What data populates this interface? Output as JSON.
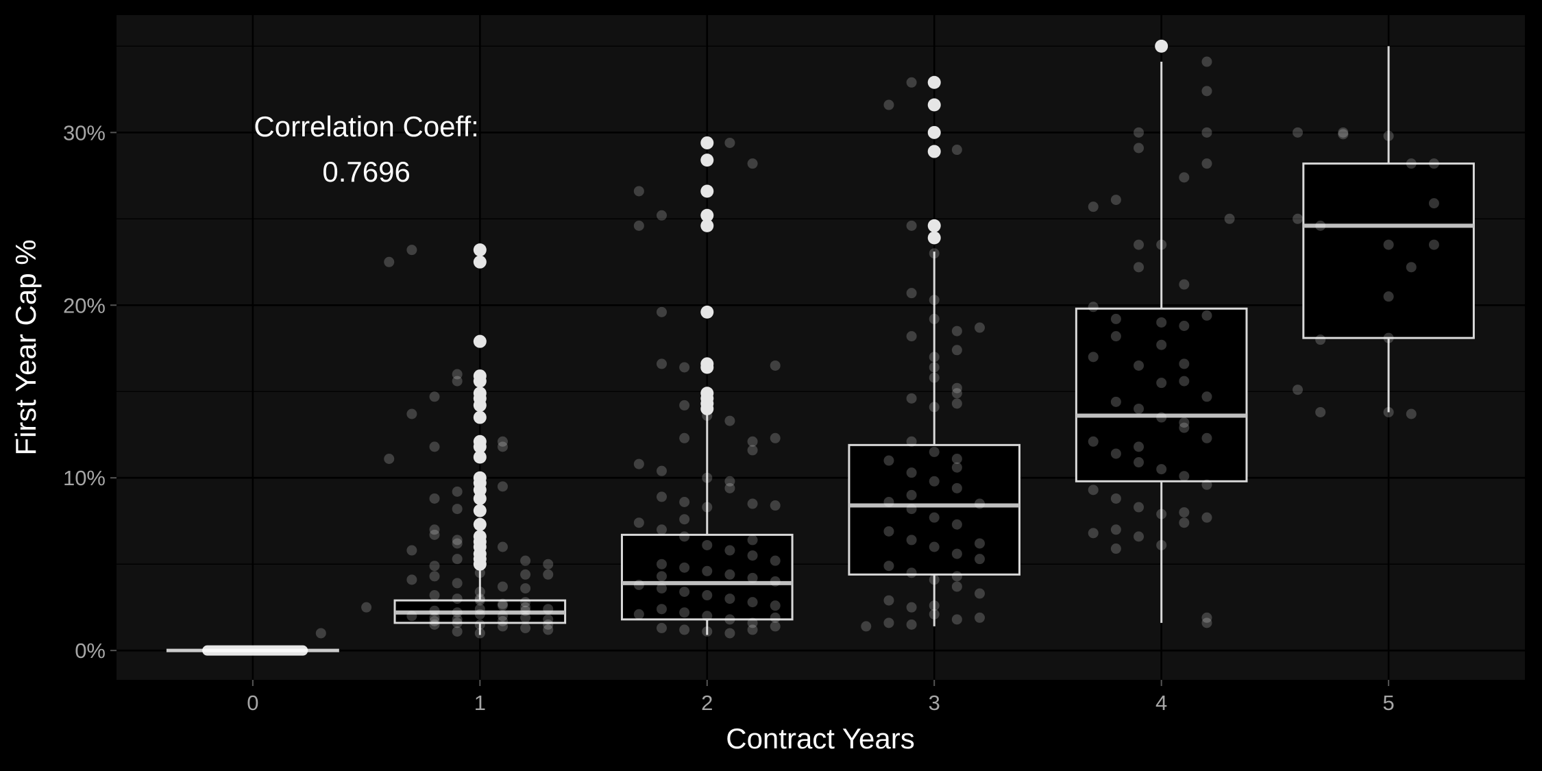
{
  "chart_data": {
    "type": "boxplot",
    "xlabel": "Contract Years",
    "ylabel": "First Year Cap %",
    "x_ticks": [
      "0",
      "1",
      "2",
      "3",
      "4",
      "5"
    ],
    "y_ticks": [
      "0%",
      "10%",
      "20%",
      "30%"
    ],
    "y_tick_values": [
      0,
      10,
      20,
      30
    ],
    "ylim": [
      -1.7,
      36.8
    ],
    "xlim": [
      -0.6,
      5.6
    ],
    "grid": true,
    "annotation": {
      "line1": "Correlation Coeff:",
      "line2": "0.7696",
      "x": 0.5,
      "y": 29.5
    },
    "colors": {
      "background": "#000000",
      "panel": "#111111",
      "box_fill": "#000000",
      "box_stroke": "#d9d9d9",
      "median": "#bfbfbf",
      "points": "#ffffff"
    },
    "boxes": [
      {
        "x": 0,
        "q1": 0.0,
        "median": 0.0,
        "q3": 0.0,
        "whisker_low": 0.0,
        "whisker_high": 0.0,
        "outliers": []
      },
      {
        "x": 1,
        "q1": 1.6,
        "median": 2.2,
        "q3": 2.9,
        "whisker_low": 0.9,
        "whisker_high": 4.9,
        "outliers": [
          5.0,
          5.3,
          5.6,
          6.0,
          6.3,
          6.6,
          7.3,
          8.1,
          8.8,
          9.3,
          9.7,
          10.0,
          11.2,
          11.8,
          12.1,
          13.5,
          14.2,
          14.6,
          14.9,
          15.6,
          15.9,
          17.9,
          22.5,
          23.2
        ]
      },
      {
        "x": 2,
        "q1": 1.8,
        "median": 3.9,
        "q3": 6.7,
        "whisker_low": 0.9,
        "whisker_high": 13.7,
        "outliers": [
          14.0,
          14.3,
          14.6,
          14.9,
          16.4,
          16.6,
          19.6,
          24.6,
          25.2,
          26.6,
          28.4,
          29.4
        ]
      },
      {
        "x": 3,
        "q1": 4.4,
        "median": 8.4,
        "q3": 11.9,
        "whisker_low": 1.4,
        "whisker_high": 23.1,
        "outliers": [
          23.9,
          24.6,
          28.9,
          30.0,
          31.6,
          32.9
        ]
      },
      {
        "x": 4,
        "q1": 9.8,
        "median": 13.6,
        "q3": 19.8,
        "whisker_low": 1.6,
        "whisker_high": 34.1,
        "outliers": [
          35.0
        ]
      },
      {
        "x": 5,
        "q1": 18.1,
        "median": 24.6,
        "q3": 28.2,
        "whisker_low": 13.8,
        "whisker_high": 35.0,
        "outliers": []
      }
    ],
    "jitter_points": [
      [
        0.3,
        1.0
      ],
      [
        0.5,
        2.5
      ],
      [
        0.8,
        1.5
      ],
      [
        1.0,
        3.0
      ],
      [
        0.6,
        22.5
      ],
      [
        0.7,
        23.2
      ],
      [
        1.0,
        17.9
      ],
      [
        0.8,
        14.7
      ],
      [
        0.9,
        15.6
      ],
      [
        0.9,
        16.0
      ],
      [
        0.7,
        13.7
      ],
      [
        0.6,
        11.1
      ],
      [
        0.8,
        11.8
      ],
      [
        1.1,
        12.1
      ],
      [
        1.1,
        11.8
      ],
      [
        1.1,
        9.5
      ],
      [
        0.8,
        8.8
      ],
      [
        0.9,
        9.2
      ],
      [
        1.0,
        9.0
      ],
      [
        0.9,
        8.2
      ],
      [
        1.0,
        7.4
      ],
      [
        0.8,
        7.0
      ],
      [
        0.9,
        6.4
      ],
      [
        0.8,
        6.7
      ],
      [
        0.9,
        6.2
      ],
      [
        0.7,
        5.8
      ],
      [
        1.0,
        5.5
      ],
      [
        1.1,
        6.0
      ],
      [
        1.2,
        5.2
      ],
      [
        1.3,
        5.0
      ],
      [
        0.9,
        5.3
      ],
      [
        0.8,
        4.9
      ],
      [
        1.0,
        4.5
      ],
      [
        1.2,
        4.4
      ],
      [
        1.3,
        4.4
      ],
      [
        0.8,
        4.3
      ],
      [
        0.7,
        4.1
      ],
      [
        0.9,
        3.9
      ],
      [
        1.1,
        3.7
      ],
      [
        1.2,
        3.6
      ],
      [
        1.0,
        3.4
      ],
      [
        0.8,
        3.2
      ],
      [
        0.9,
        3.0
      ],
      [
        1.0,
        2.9
      ],
      [
        1.1,
        2.7
      ],
      [
        1.2,
        2.5
      ],
      [
        1.3,
        2.4
      ],
      [
        0.8,
        2.3
      ],
      [
        0.9,
        2.2
      ],
      [
        1.0,
        2.1
      ],
      [
        1.1,
        2.0
      ],
      [
        1.2,
        1.9
      ],
      [
        1.3,
        1.8
      ],
      [
        0.8,
        1.7
      ],
      [
        0.9,
        1.6
      ],
      [
        1.0,
        1.5
      ],
      [
        1.1,
        1.4
      ],
      [
        1.2,
        1.3
      ],
      [
        1.3,
        1.2
      ],
      [
        0.9,
        1.1
      ],
      [
        1.0,
        1.0
      ],
      [
        1.1,
        2.6
      ],
      [
        1.2,
        2.3
      ],
      [
        0.7,
        2.0
      ],
      [
        1.3,
        1.5
      ],
      [
        0.8,
        1.9
      ],
      [
        1.0,
        2.4
      ],
      [
        1.1,
        1.7
      ],
      [
        1.2,
        2.8
      ],
      [
        0.9,
        1.8
      ],
      [
        1.7,
        26.6
      ],
      [
        1.8,
        25.2
      ],
      [
        1.7,
        24.6
      ],
      [
        2.1,
        29.4
      ],
      [
        2.2,
        28.2
      ],
      [
        1.8,
        19.6
      ],
      [
        1.8,
        16.6
      ],
      [
        1.9,
        16.4
      ],
      [
        2.3,
        16.5
      ],
      [
        1.9,
        14.2
      ],
      [
        2.1,
        13.3
      ],
      [
        2.0,
        13.6
      ],
      [
        1.9,
        12.3
      ],
      [
        2.2,
        12.1
      ],
      [
        2.3,
        12.3
      ],
      [
        2.2,
        11.6
      ],
      [
        1.7,
        10.8
      ],
      [
        1.8,
        10.4
      ],
      [
        2.0,
        10.0
      ],
      [
        2.1,
        9.4
      ],
      [
        1.8,
        8.9
      ],
      [
        1.9,
        8.6
      ],
      [
        2.0,
        8.3
      ],
      [
        2.2,
        8.5
      ],
      [
        2.3,
        8.4
      ],
      [
        1.7,
        7.4
      ],
      [
        1.8,
        7.0
      ],
      [
        1.9,
        6.6
      ],
      [
        2.0,
        6.1
      ],
      [
        2.1,
        5.8
      ],
      [
        2.2,
        5.5
      ],
      [
        2.3,
        5.2
      ],
      [
        1.8,
        5.0
      ],
      [
        1.9,
        4.8
      ],
      [
        2.0,
        4.6
      ],
      [
        2.1,
        4.4
      ],
      [
        2.2,
        4.2
      ],
      [
        2.3,
        4.0
      ],
      [
        1.7,
        3.8
      ],
      [
        1.8,
        3.6
      ],
      [
        1.9,
        3.4
      ],
      [
        2.0,
        3.2
      ],
      [
        2.1,
        3.0
      ],
      [
        2.2,
        2.8
      ],
      [
        2.3,
        2.6
      ],
      [
        1.8,
        2.4
      ],
      [
        1.9,
        2.2
      ],
      [
        2.0,
        2.0
      ],
      [
        2.1,
        1.8
      ],
      [
        2.2,
        1.6
      ],
      [
        2.3,
        1.4
      ],
      [
        1.8,
        1.3
      ],
      [
        1.9,
        1.2
      ],
      [
        2.0,
        1.1
      ],
      [
        2.1,
        1.0
      ],
      [
        2.2,
        1.2
      ],
      [
        1.7,
        2.1
      ],
      [
        2.3,
        1.9
      ],
      [
        1.8,
        4.3
      ],
      [
        2.2,
        6.4
      ],
      [
        1.9,
        7.6
      ],
      [
        2.1,
        9.8
      ],
      [
        2.8,
        31.6
      ],
      [
        2.9,
        32.9
      ],
      [
        3.1,
        29.0
      ],
      [
        2.9,
        24.6
      ],
      [
        3.0,
        23.9
      ],
      [
        3.0,
        23.0
      ],
      [
        2.9,
        20.7
      ],
      [
        3.0,
        20.3
      ],
      [
        3.0,
        19.2
      ],
      [
        3.1,
        18.5
      ],
      [
        3.2,
        18.7
      ],
      [
        2.9,
        18.2
      ],
      [
        3.0,
        17.0
      ],
      [
        3.1,
        17.4
      ],
      [
        3.0,
        16.4
      ],
      [
        3.0,
        15.8
      ],
      [
        3.1,
        15.2
      ],
      [
        3.1,
        14.9
      ],
      [
        2.9,
        14.6
      ],
      [
        3.0,
        14.1
      ],
      [
        3.1,
        14.3
      ],
      [
        2.9,
        12.1
      ],
      [
        3.0,
        11.5
      ],
      [
        3.1,
        11.1
      ],
      [
        2.8,
        11.0
      ],
      [
        2.9,
        10.3
      ],
      [
        3.0,
        9.8
      ],
      [
        3.1,
        9.4
      ],
      [
        2.8,
        8.6
      ],
      [
        2.9,
        8.2
      ],
      [
        3.0,
        7.7
      ],
      [
        3.1,
        7.3
      ],
      [
        3.2,
        8.5
      ],
      [
        2.8,
        6.9
      ],
      [
        2.9,
        6.4
      ],
      [
        3.0,
        6.0
      ],
      [
        3.1,
        5.6
      ],
      [
        3.2,
        5.3
      ],
      [
        2.8,
        4.9
      ],
      [
        2.9,
        4.5
      ],
      [
        3.0,
        4.1
      ],
      [
        3.1,
        3.7
      ],
      [
        3.2,
        3.3
      ],
      [
        2.8,
        2.9
      ],
      [
        2.9,
        2.5
      ],
      [
        3.0,
        2.1
      ],
      [
        3.1,
        1.8
      ],
      [
        3.2,
        1.9
      ],
      [
        2.7,
        1.4
      ],
      [
        2.8,
        1.6
      ],
      [
        2.9,
        1.5
      ],
      [
        3.0,
        2.6
      ],
      [
        3.1,
        4.3
      ],
      [
        3.2,
        6.2
      ],
      [
        2.9,
        9.0
      ],
      [
        3.1,
        10.6
      ],
      [
        3.7,
        25.7
      ],
      [
        3.8,
        26.1
      ],
      [
        3.9,
        30.0
      ],
      [
        3.9,
        29.1
      ],
      [
        4.1,
        27.4
      ],
      [
        4.2,
        32.4
      ],
      [
        4.2,
        34.1
      ],
      [
        4.2,
        30.0
      ],
      [
        4.2,
        28.2
      ],
      [
        4.3,
        25.0
      ],
      [
        3.9,
        23.5
      ],
      [
        4.0,
        23.5
      ],
      [
        3.9,
        22.2
      ],
      [
        4.1,
        21.2
      ],
      [
        3.7,
        19.9
      ],
      [
        3.8,
        19.2
      ],
      [
        4.0,
        19.0
      ],
      [
        4.1,
        18.8
      ],
      [
        4.2,
        19.4
      ],
      [
        3.8,
        18.2
      ],
      [
        4.0,
        17.7
      ],
      [
        4.1,
        16.6
      ],
      [
        3.7,
        17.0
      ],
      [
        3.9,
        16.5
      ],
      [
        4.0,
        15.5
      ],
      [
        4.1,
        15.6
      ],
      [
        4.2,
        14.7
      ],
      [
        3.8,
        14.4
      ],
      [
        3.9,
        14.0
      ],
      [
        4.0,
        13.5
      ],
      [
        4.1,
        12.9
      ],
      [
        4.2,
        12.3
      ],
      [
        3.7,
        12.1
      ],
      [
        3.8,
        11.4
      ],
      [
        3.9,
        10.9
      ],
      [
        4.0,
        10.5
      ],
      [
        4.1,
        10.1
      ],
      [
        4.2,
        9.6
      ],
      [
        3.7,
        9.3
      ],
      [
        3.8,
        8.8
      ],
      [
        3.9,
        8.3
      ],
      [
        4.0,
        7.9
      ],
      [
        4.1,
        7.4
      ],
      [
        4.2,
        7.7
      ],
      [
        3.8,
        7.0
      ],
      [
        3.9,
        6.6
      ],
      [
        4.0,
        6.1
      ],
      [
        3.7,
        6.8
      ],
      [
        4.2,
        1.6
      ],
      [
        4.2,
        1.9
      ],
      [
        3.8,
        5.9
      ],
      [
        4.1,
        8.0
      ],
      [
        3.9,
        11.8
      ],
      [
        4.1,
        13.2
      ],
      [
        4.6,
        30.0
      ],
      [
        4.8,
        30.0
      ],
      [
        4.8,
        29.9
      ],
      [
        5.0,
        29.8
      ],
      [
        5.1,
        28.2
      ],
      [
        5.2,
        28.2
      ],
      [
        4.6,
        25.0
      ],
      [
        4.7,
        24.6
      ],
      [
        5.0,
        23.5
      ],
      [
        5.2,
        25.9
      ],
      [
        5.2,
        23.5
      ],
      [
        5.1,
        22.2
      ],
      [
        5.0,
        20.5
      ],
      [
        4.7,
        18.0
      ],
      [
        5.0,
        18.1
      ],
      [
        4.6,
        15.1
      ],
      [
        4.7,
        13.8
      ],
      [
        5.0,
        13.8
      ],
      [
        5.1,
        13.7
      ]
    ]
  }
}
